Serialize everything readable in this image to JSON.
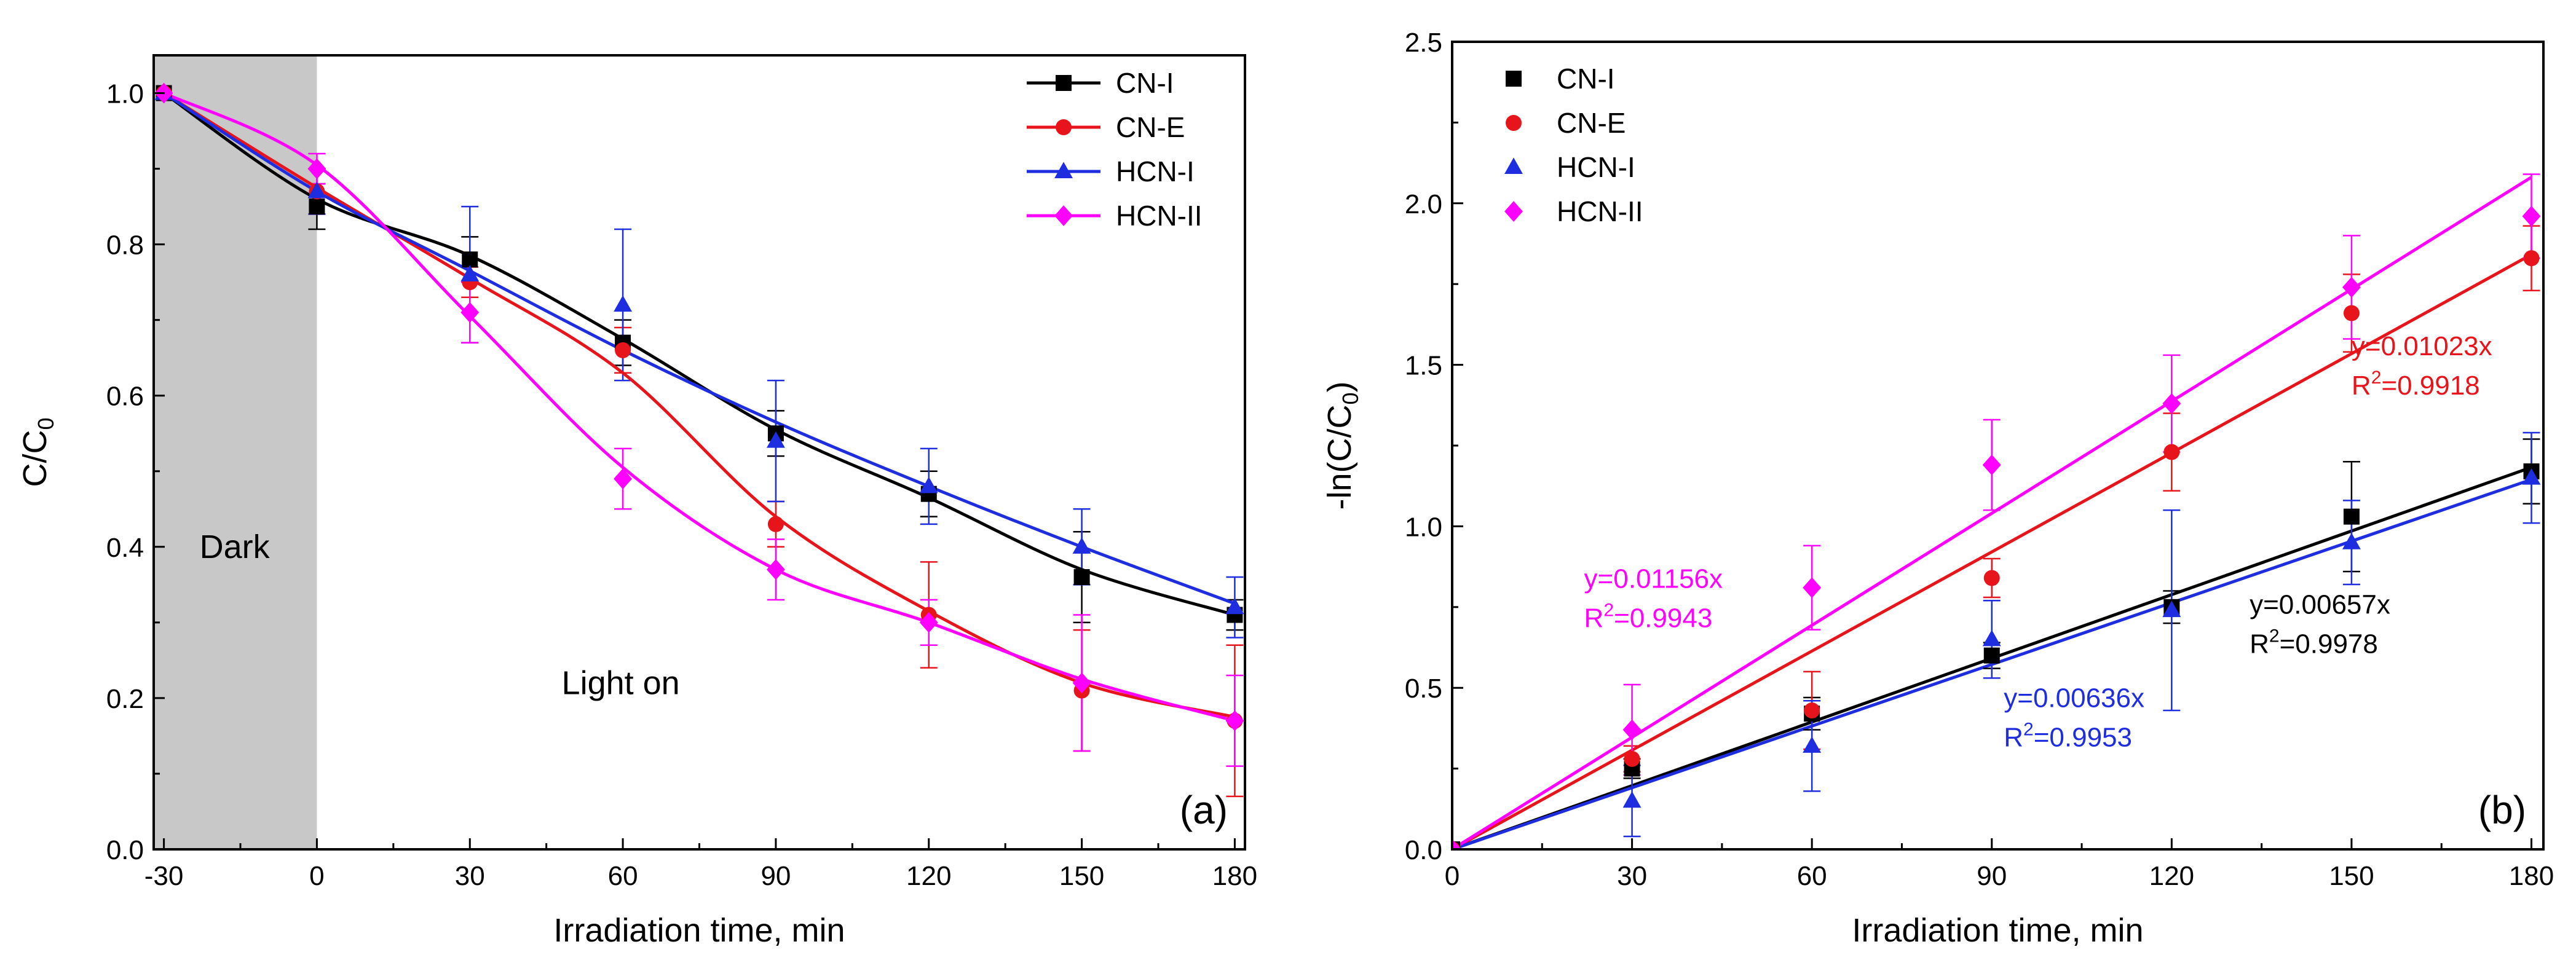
{
  "chart_data": [
    {
      "panel": "(a)",
      "type": "line",
      "xlabel": "Irradiation time, min",
      "ylabel": "C/C",
      "ylabel_sub": "0",
      "xlim": [
        -32,
        182
      ],
      "ylim": [
        0,
        1.05
      ],
      "xticks": [
        -30,
        0,
        30,
        60,
        90,
        120,
        150,
        180
      ],
      "xtick_labels": [
        "-30",
        "0",
        "30",
        "60",
        "90",
        "120",
        "150",
        "180"
      ],
      "yticks": [
        0,
        0.2,
        0.4,
        0.6,
        0.8,
        1.0
      ],
      "ytick_labels": [
        "0.0",
        "0.2",
        "0.4",
        "0.6",
        "0.8",
        "1.0"
      ],
      "shaded_region": {
        "x": [
          -32,
          0
        ],
        "label": "Dark",
        "label_pos": [
          -23,
          0.4
        ],
        "color": "#c8c8c8"
      },
      "annotations": [
        {
          "text": "Light on",
          "pos": [
            48,
            0.22
          ],
          "color": "#000000"
        }
      ],
      "legend": "top-right",
      "series": [
        {
          "name": "CN-I",
          "color": "#000000",
          "marker": "square",
          "x": [
            -30,
            0,
            30,
            60,
            90,
            120,
            150,
            180
          ],
          "y": [
            1.0,
            0.85,
            0.78,
            0.67,
            0.55,
            0.47,
            0.36,
            0.31
          ],
          "err": [
            0,
            0.03,
            0.03,
            0.03,
            0.03,
            0.03,
            0.06,
            0.02
          ],
          "curve": [
            1.0,
            0.86,
            0.785,
            0.675,
            0.555,
            0.465,
            0.37,
            0.31
          ]
        },
        {
          "name": "CN-E",
          "color": "#e8141b",
          "marker": "circle",
          "x": [
            -30,
            0,
            30,
            60,
            90,
            120,
            150,
            180
          ],
          "y": [
            1.0,
            0.87,
            0.75,
            0.66,
            0.43,
            0.31,
            0.21,
            0.17
          ],
          "err": [
            0,
            0.03,
            0.02,
            0.03,
            0.03,
            0.07,
            0.08,
            0.1
          ],
          "curve": [
            1.0,
            0.875,
            0.755,
            0.63,
            0.44,
            0.315,
            0.22,
            0.175
          ]
        },
        {
          "name": "HCN-I",
          "color": "#1f2de0",
          "marker": "triangle",
          "x": [
            -30,
            0,
            30,
            60,
            90,
            120,
            150,
            180
          ],
          "y": [
            1.0,
            0.87,
            0.76,
            0.72,
            0.54,
            0.48,
            0.4,
            0.32
          ],
          "err": [
            0,
            0.03,
            0.09,
            0.1,
            0.08,
            0.05,
            0.05,
            0.04
          ],
          "curve": [
            1.0,
            0.87,
            0.765,
            0.66,
            0.565,
            0.48,
            0.4,
            0.325
          ]
        },
        {
          "name": "HCN-II",
          "color": "#ff00ff",
          "marker": "diamond",
          "x": [
            -30,
            0,
            30,
            60,
            90,
            120,
            150,
            180
          ],
          "y": [
            1.0,
            0.9,
            0.71,
            0.49,
            0.37,
            0.3,
            0.22,
            0.17
          ],
          "err": [
            0,
            0.02,
            0.04,
            0.04,
            0.04,
            0.03,
            0.09,
            0.06
          ],
          "curve": [
            1.0,
            0.905,
            0.705,
            0.505,
            0.37,
            0.3,
            0.225,
            0.17
          ]
        }
      ]
    },
    {
      "panel": "(b)",
      "type": "scatter",
      "xlabel": "Irradiation time, min",
      "ylabel": "-ln(C/C",
      "ylabel_sub": "0",
      "ylabel_end": ")",
      "xlim": [
        0,
        182
      ],
      "ylim": [
        0,
        2.5
      ],
      "xticks": [
        0,
        30,
        60,
        90,
        120,
        150,
        180
      ],
      "xtick_labels": [
        "0",
        "30",
        "60",
        "90",
        "120",
        "150",
        "180"
      ],
      "yticks": [
        0,
        0.5,
        1.0,
        1.5,
        2.0,
        2.5
      ],
      "ytick_labels": [
        "0.0",
        "0.5",
        "1.0",
        "1.5",
        "2.0",
        "2.5"
      ],
      "legend": "top-left",
      "series": [
        {
          "name": "CN-I",
          "color": "#000000",
          "marker": "square",
          "x": [
            0,
            30,
            60,
            90,
            120,
            150,
            180
          ],
          "y": [
            0,
            0.25,
            0.42,
            0.6,
            0.75,
            1.03,
            1.17
          ],
          "err": [
            0,
            0.03,
            0.05,
            0.04,
            0.05,
            0.17,
            0.1
          ],
          "slope": 0.00657,
          "fit_end": 1.182,
          "eq": "y=0.00657x",
          "r2_prefix": "R",
          "r2_value": "=0.9978",
          "eq_pos": [
            133,
            0.73
          ]
        },
        {
          "name": "CN-E",
          "color": "#e8141b",
          "marker": "circle",
          "x": [
            0,
            30,
            60,
            90,
            120,
            150,
            180
          ],
          "y": [
            0,
            0.28,
            0.43,
            0.84,
            1.23,
            1.66,
            1.83
          ],
          "err": [
            0,
            0.04,
            0.12,
            0.06,
            0.12,
            0.12,
            0.1
          ],
          "slope": 0.01023,
          "fit_end": 1.841,
          "eq": "y=0.01023x",
          "r2_prefix": "R",
          "r2_value": "=0.9918",
          "eq_pos": [
            150,
            1.53
          ]
        },
        {
          "name": "HCN-I",
          "color": "#1f2de0",
          "marker": "triangle",
          "x": [
            0,
            30,
            60,
            90,
            120,
            150,
            180
          ],
          "y": [
            0,
            0.15,
            0.32,
            0.65,
            0.74,
            0.95,
            1.15
          ],
          "err": [
            0,
            0.11,
            0.14,
            0.12,
            0.31,
            0.13,
            0.14
          ],
          "slope": 0.00636,
          "fit_end": 1.145,
          "eq": "y=0.00636x",
          "r2_prefix": "R",
          "r2_value": "=0.9953",
          "eq_pos": [
            92,
            0.44
          ]
        },
        {
          "name": "HCN-II",
          "color": "#ff00ff",
          "marker": "diamond",
          "x": [
            0,
            30,
            60,
            90,
            120,
            150,
            180
          ],
          "y": [
            0,
            0.37,
            0.81,
            1.19,
            1.38,
            1.74,
            1.96
          ],
          "err": [
            0,
            0.14,
            0.13,
            0.14,
            0.15,
            0.16,
            0.13
          ],
          "slope": 0.01156,
          "fit_end": 2.08,
          "eq": "y=0.01156x",
          "r2_prefix": "R",
          "r2_value": "=0.9943",
          "eq_pos": [
            22,
            0.81
          ]
        }
      ]
    }
  ]
}
